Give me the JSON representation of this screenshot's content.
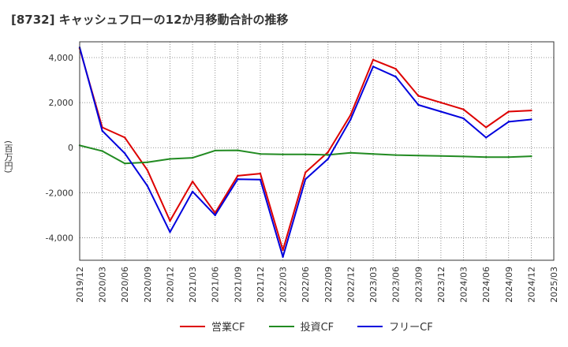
{
  "chart_data": {
    "type": "line",
    "title": "[8732]  キャッシュフローの12か月移動合計の推移",
    "ylabel": "(百万円)",
    "xlabel": "",
    "x": [
      "2019/12",
      "2020/03",
      "2020/06",
      "2020/09",
      "2020/12",
      "2021/03",
      "2021/06",
      "2021/09",
      "2021/12",
      "2022/03",
      "2022/06",
      "2022/09",
      "2022/12",
      "2023/03",
      "2023/06",
      "2023/09",
      "2023/12",
      "2024/03",
      "2024/06",
      "2024/09",
      "2024/12",
      "2025/03"
    ],
    "ylim": [
      -5000,
      4700
    ],
    "yticks": [
      -4000,
      -2000,
      0,
      2000,
      4000
    ],
    "ytick_labels": [
      "-4,000",
      "-2,000",
      "0",
      "2,000",
      "4,000"
    ],
    "grid": true,
    "series": [
      {
        "name": "営業CF",
        "color": "#dd0000",
        "values": [
          4400,
          900,
          450,
          -1000,
          -3250,
          -1500,
          -2900,
          -1250,
          -1150,
          -4550,
          -1100,
          -200,
          1450,
          3900,
          3500,
          2300,
          2000,
          1700,
          900,
          1600,
          1650,
          null
        ]
      },
      {
        "name": "投資CF",
        "color": "#228b22",
        "values": [
          100,
          -150,
          -700,
          -650,
          -500,
          -450,
          -130,
          -120,
          -280,
          -300,
          -300,
          -320,
          -230,
          -280,
          -330,
          -350,
          -370,
          -390,
          -420,
          -420,
          -380,
          null
        ]
      },
      {
        "name": "フリーCF",
        "color": "#0000dd",
        "values": [
          4450,
          750,
          -250,
          -1700,
          -3750,
          -1950,
          -3000,
          -1400,
          -1420,
          -4850,
          -1400,
          -500,
          1250,
          3600,
          3150,
          1900,
          1600,
          1300,
          450,
          1150,
          1250,
          null
        ]
      }
    ]
  }
}
